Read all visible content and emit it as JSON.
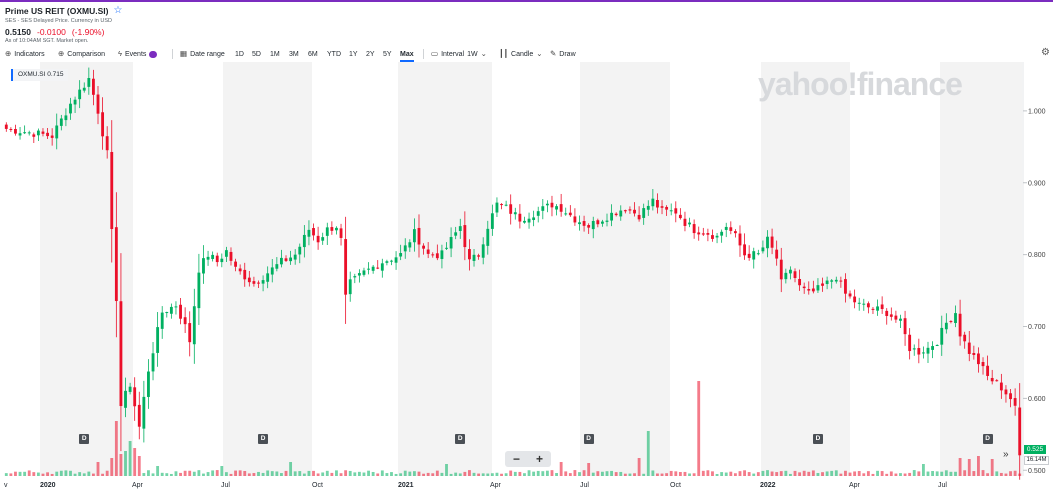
{
  "header": {
    "title": "Prime US REIT (OXMU.SI)",
    "subtitle": "SES - SES Delayed Price. Currency in USD",
    "price": "0.5150",
    "change": "-0.0100",
    "change_pct": "(-1.90%)",
    "as_of": "As of 10:04AM SGT. Market open."
  },
  "toolbar": {
    "indicators": "Indicators",
    "comparison": "Comparison",
    "events": "Events",
    "date_range": "Date range",
    "ranges": [
      "1D",
      "5D",
      "1M",
      "3M",
      "6M",
      "YTD",
      "1Y",
      "2Y",
      "5Y",
      "Max"
    ],
    "active_range": "Max",
    "interval_label": "Interval",
    "interval_value": "1W",
    "chart_type": "Candle",
    "draw": "Draw"
  },
  "legend": {
    "symbol": "OXMU.SI",
    "value": "0.715"
  },
  "watermark": "yahoo!finance",
  "price_badge": "0.525",
  "volume_badge": "16.14M",
  "zoom": {
    "minus": "−",
    "plus": "+"
  },
  "dividend_marker": "D",
  "colors": {
    "up": "#00b061",
    "down": "#eb0f29",
    "accent": "#0f69ff",
    "band": "#f3f3f3"
  },
  "icons": [
    "indicators-icon",
    "comparison-icon",
    "events-icon",
    "date-range-icon",
    "interval-icon",
    "candle-icon",
    "draw-icon",
    "star-icon",
    "settings-icon",
    "fast-forward-icon"
  ],
  "chart_data": {
    "type": "candlestick",
    "interval": "1W",
    "y_ticks": [
      0.5,
      0.6,
      0.7,
      0.8,
      0.9,
      1.0
    ],
    "ylim": [
      0.492,
      1.068
    ],
    "x_labels": [
      "v",
      "2020",
      "Apr",
      "Jul",
      "Oct",
      "2021",
      "Apr",
      "Jul",
      "Oct",
      "2022",
      "Apr",
      "Jul"
    ],
    "dividend_weeks": [
      17,
      56,
      99,
      127,
      177,
      214
    ],
    "waypoints": [
      [
        0,
        0.975
      ],
      [
        5,
        0.97
      ],
      [
        10,
        0.965
      ],
      [
        14,
        1.01
      ],
      [
        18,
        1.045
      ],
      [
        20,
        1.0
      ],
      [
        22,
        0.94
      ],
      [
        23,
        0.83
      ],
      [
        24,
        0.74
      ],
      [
        25,
        0.59
      ],
      [
        27,
        0.62
      ],
      [
        29,
        0.56
      ],
      [
        31,
        0.64
      ],
      [
        34,
        0.72
      ],
      [
        37,
        0.73
      ],
      [
        39,
        0.7
      ],
      [
        40,
        0.68
      ],
      [
        42,
        0.78
      ],
      [
        44,
        0.8
      ],
      [
        46,
        0.79
      ],
      [
        48,
        0.805
      ],
      [
        50,
        0.78
      ],
      [
        54,
        0.76
      ],
      [
        57,
        0.775
      ],
      [
        60,
        0.79
      ],
      [
        63,
        0.8
      ],
      [
        66,
        0.835
      ],
      [
        68,
        0.82
      ],
      [
        70,
        0.835
      ],
      [
        72,
        0.84
      ],
      [
        73,
        0.82
      ],
      [
        74,
        0.74
      ],
      [
        75,
        0.76
      ],
      [
        78,
        0.775
      ],
      [
        82,
        0.79
      ],
      [
        86,
        0.8
      ],
      [
        89,
        0.83
      ],
      [
        92,
        0.8
      ],
      [
        95,
        0.8
      ],
      [
        99,
        0.84
      ],
      [
        101,
        0.79
      ],
      [
        103,
        0.8
      ],
      [
        105,
        0.84
      ],
      [
        107,
        0.87
      ],
      [
        109,
        0.865
      ],
      [
        112,
        0.85
      ],
      [
        116,
        0.86
      ],
      [
        119,
        0.87
      ],
      [
        121,
        0.865
      ],
      [
        124,
        0.85
      ],
      [
        127,
        0.84
      ],
      [
        130,
        0.85
      ],
      [
        133,
        0.86
      ],
      [
        135,
        0.865
      ],
      [
        138,
        0.855
      ],
      [
        141,
        0.875
      ],
      [
        143,
        0.86
      ],
      [
        146,
        0.86
      ],
      [
        148,
        0.845
      ],
      [
        150,
        0.835
      ],
      [
        153,
        0.83
      ],
      [
        155,
        0.825
      ],
      [
        157,
        0.84
      ],
      [
        159,
        0.825
      ],
      [
        161,
        0.8
      ],
      [
        164,
        0.8
      ],
      [
        166,
        0.82
      ],
      [
        168,
        0.795
      ],
      [
        169,
        0.76
      ],
      [
        171,
        0.78
      ],
      [
        173,
        0.755
      ],
      [
        175,
        0.745
      ],
      [
        178,
        0.755
      ],
      [
        181,
        0.77
      ],
      [
        183,
        0.745
      ],
      [
        186,
        0.73
      ],
      [
        189,
        0.725
      ],
      [
        192,
        0.72
      ],
      [
        195,
        0.705
      ],
      [
        197,
        0.67
      ],
      [
        199,
        0.665
      ],
      [
        201,
        0.67
      ],
      [
        203,
        0.68
      ],
      [
        205,
        0.705
      ],
      [
        207,
        0.72
      ],
      [
        208,
        0.69
      ],
      [
        210,
        0.665
      ],
      [
        212,
        0.65
      ],
      [
        214,
        0.63
      ],
      [
        217,
        0.615
      ],
      [
        219,
        0.6
      ],
      [
        220,
        0.585
      ],
      [
        221,
        0.52
      ]
    ],
    "volume_spikes": [
      [
        20,
        0.14
      ],
      [
        23,
        0.18
      ],
      [
        24,
        0.55
      ],
      [
        25,
        0.22
      ],
      [
        26,
        0.25
      ],
      [
        27,
        0.35
      ],
      [
        28,
        0.28
      ],
      [
        29,
        0.2
      ],
      [
        33,
        0.1
      ],
      [
        47,
        0.1
      ],
      [
        62,
        0.14
      ],
      [
        96,
        0.12
      ],
      [
        121,
        0.14
      ],
      [
        127,
        0.13
      ],
      [
        138,
        0.18
      ],
      [
        140,
        0.45
      ],
      [
        151,
        0.95
      ],
      [
        200,
        0.12
      ],
      [
        208,
        0.18
      ],
      [
        210,
        0.17
      ],
      [
        212,
        0.2
      ],
      [
        215,
        0.17
      ]
    ]
  }
}
